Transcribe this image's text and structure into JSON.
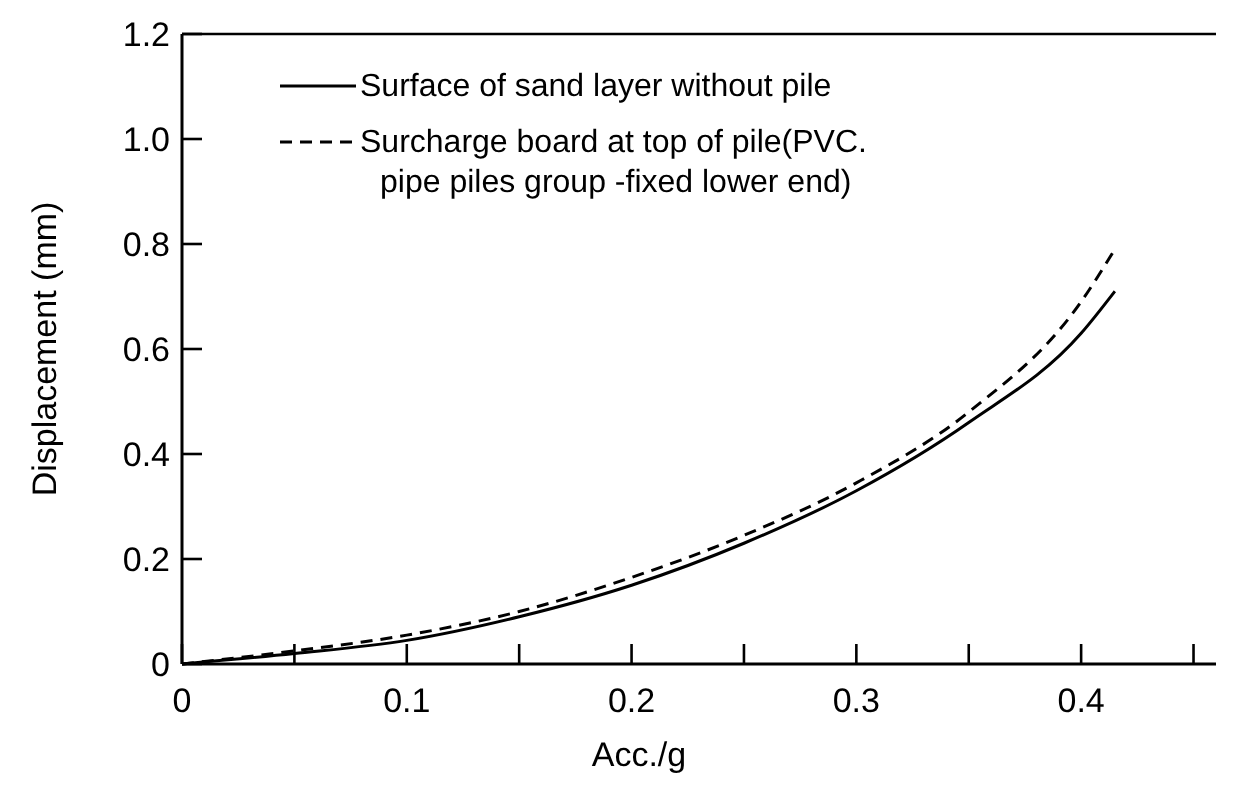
{
  "chart_data": {
    "type": "line",
    "xlabel": "Acc./g",
    "ylabel": "Displacement (mm)",
    "xlim": [
      0,
      0.46
    ],
    "ylim": [
      0,
      1.2
    ],
    "xticks": [
      0,
      {
        "value": 0.05,
        "label": null
      },
      {
        "value": 0.1,
        "label": "0.1"
      },
      {
        "value": 0.15,
        "label": null
      },
      {
        "value": 0.2,
        "label": "0.2"
      },
      {
        "value": 0.25,
        "label": null
      },
      {
        "value": 0.3,
        "label": "0.3"
      },
      {
        "value": 0.35,
        "label": null
      },
      {
        "value": 0.4,
        "label": "0.4"
      },
      {
        "value": 0.45,
        "label": null
      }
    ],
    "yticks": [
      0,
      {
        "value": 0.2,
        "label": "0.2"
      },
      {
        "value": 0.4,
        "label": "0.4"
      },
      {
        "value": 0.6,
        "label": "0.6"
      },
      {
        "value": 0.8,
        "label": "0.8"
      },
      {
        "value": 1,
        "label": "1.0"
      },
      {
        "value": 1.2,
        "label": "1.2"
      }
    ],
    "x": [
      0,
      0.05,
      0.1,
      0.15,
      0.2,
      0.25,
      0.3,
      0.35,
      0.4,
      0.415
    ],
    "series": [
      {
        "name": "Surface of sand layer without pile",
        "color": "#000000",
        "line_style": "solid",
        "values": [
          0,
          0.02,
          0.045,
          0.09,
          0.15,
          0.23,
          0.33,
          0.46,
          0.63,
          0.71
        ]
      },
      {
        "name": "Surcharge board at top of pile(PVC. pipe piles group -fixed lower end)",
        "color": "#000000",
        "line_style": "dashed",
        "values": [
          0,
          0.025,
          0.055,
          0.1,
          0.165,
          0.245,
          0.345,
          0.48,
          0.69,
          0.79
        ]
      }
    ],
    "legend": "top",
    "grid": false
  }
}
